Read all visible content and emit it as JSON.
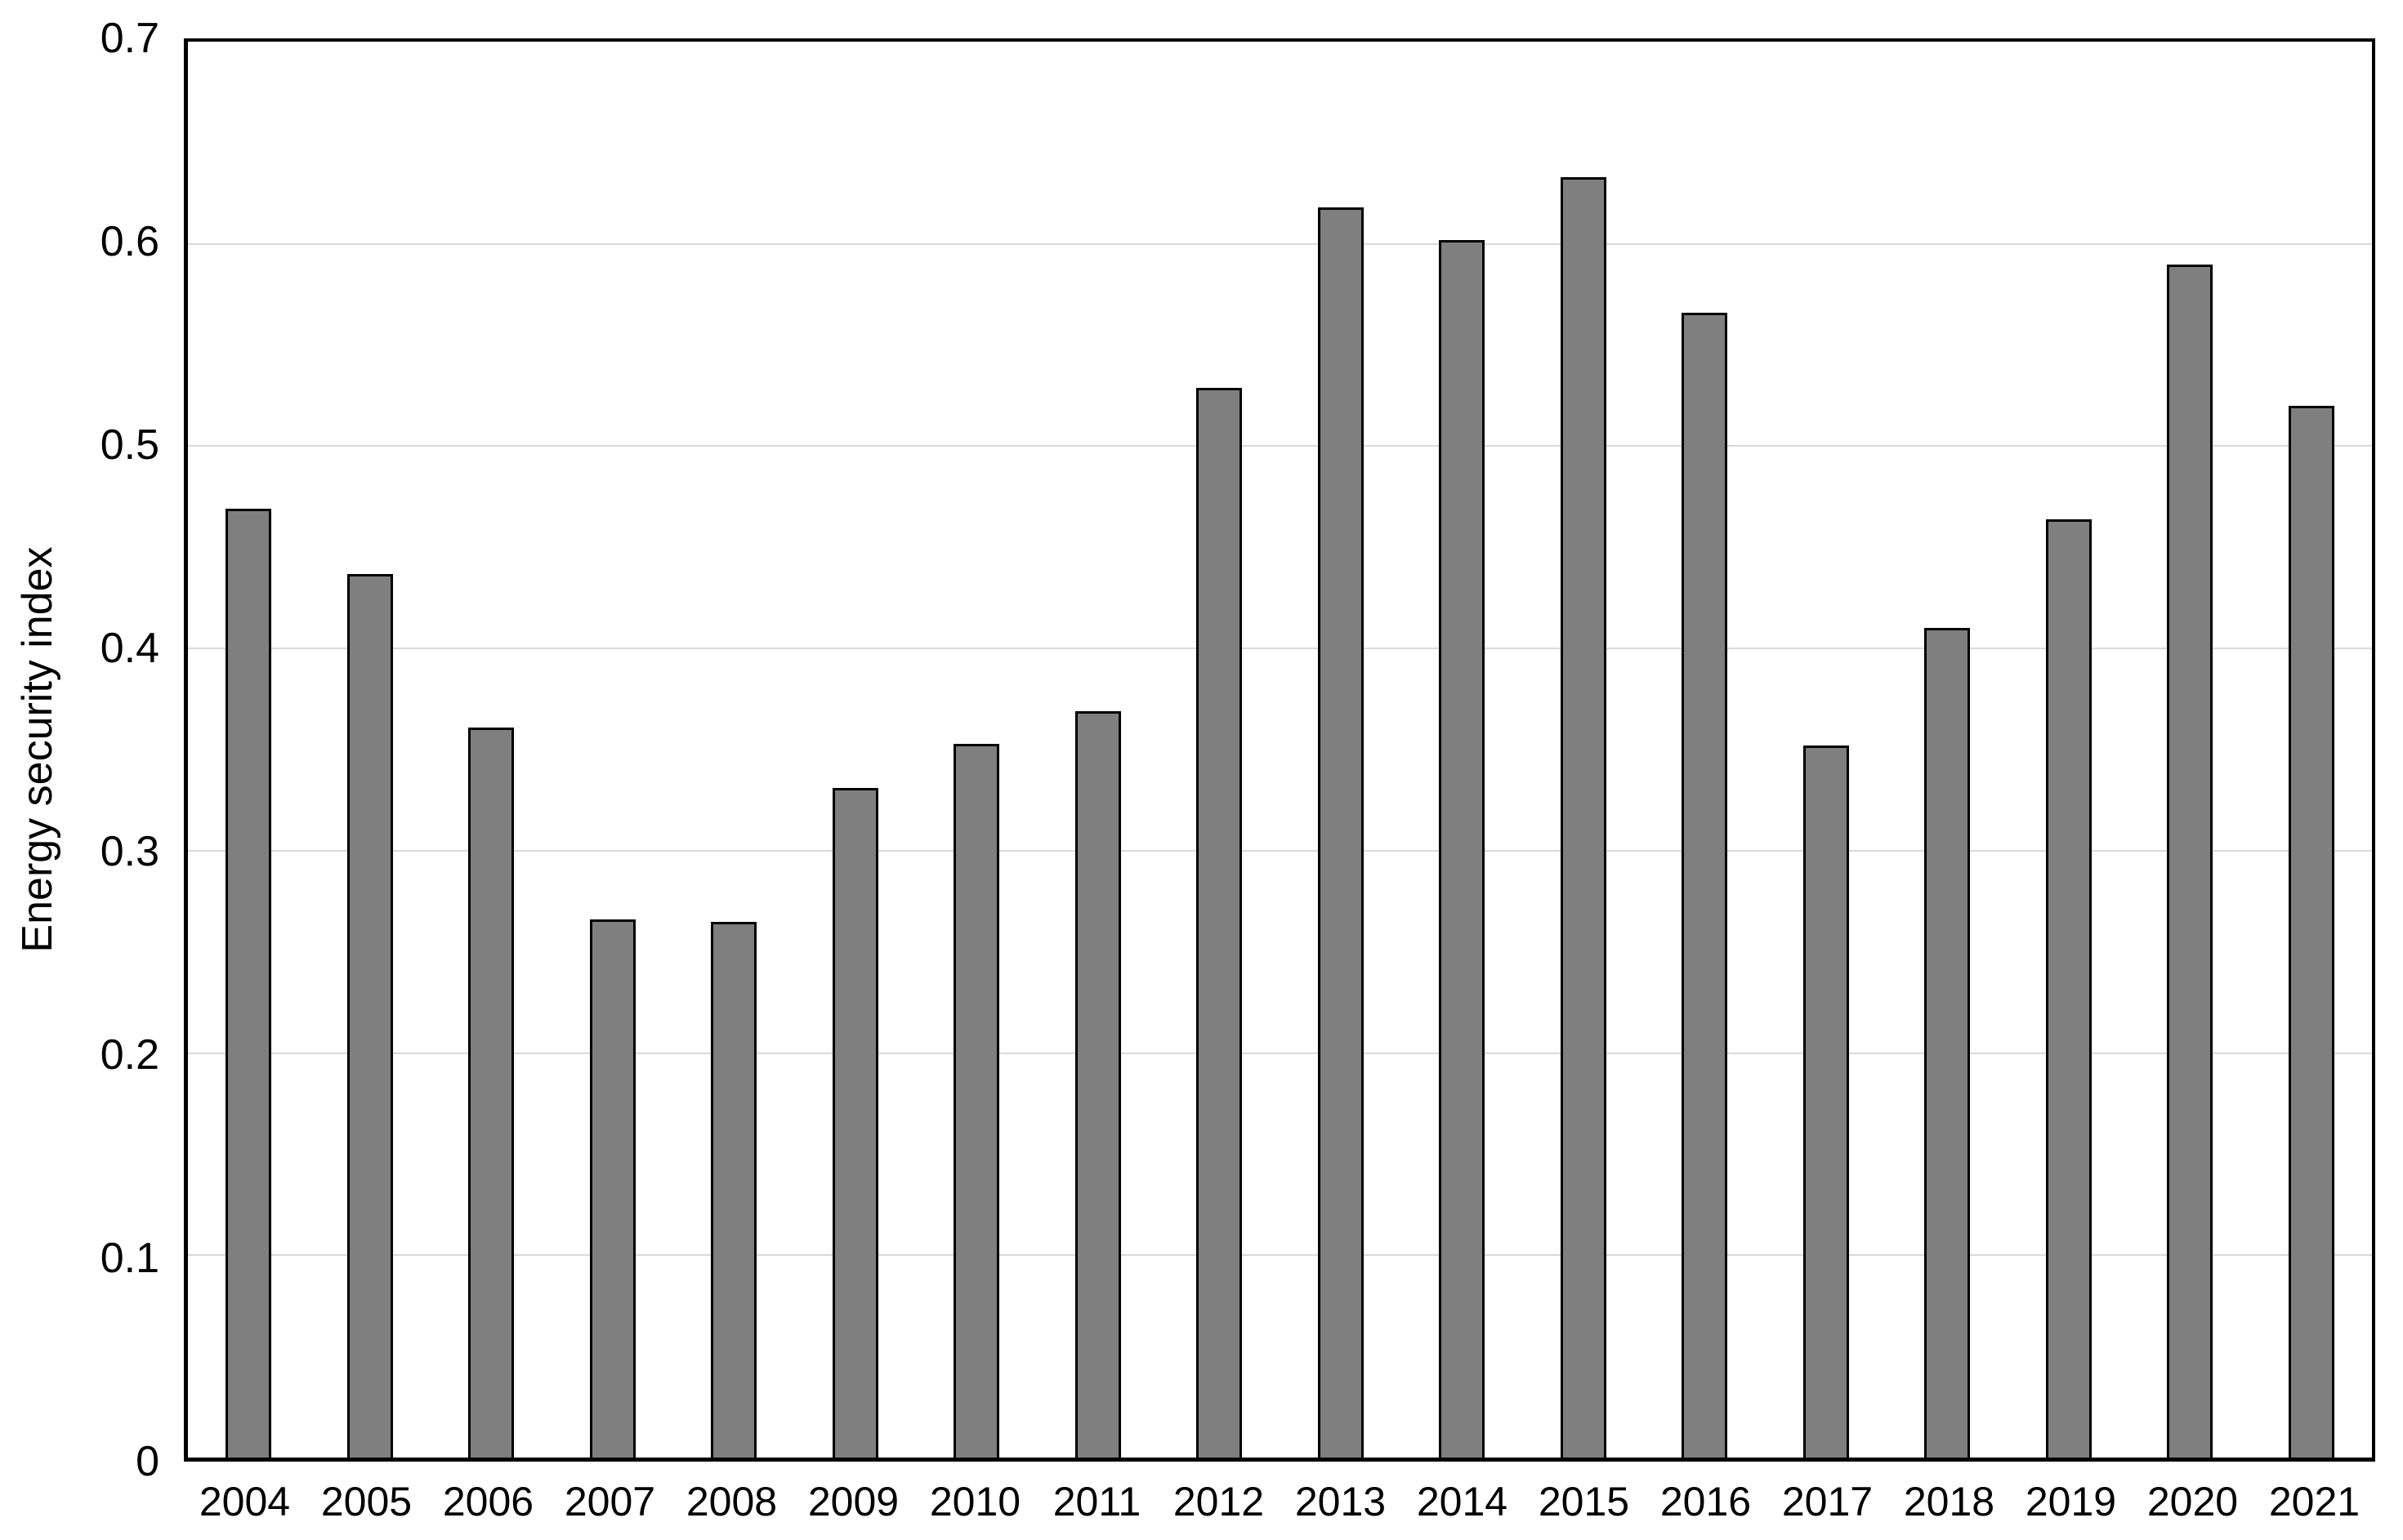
{
  "figure": {
    "background": "#FFFFFF"
  },
  "chart_data": {
    "type": "bar",
    "title": "",
    "xlabel": "",
    "ylabel": "Energy security index",
    "categories": [
      "2004",
      "2005",
      "2006",
      "2007",
      "2008",
      "2009",
      "2010",
      "2011",
      "2012",
      "2013",
      "2014",
      "2015",
      "2016",
      "2017",
      "2018",
      "2019",
      "2020",
      "2021"
    ],
    "values": [
      0.469,
      0.437,
      0.361,
      0.266,
      0.265,
      0.331,
      0.353,
      0.369,
      0.529,
      0.618,
      0.602,
      0.633,
      0.566,
      0.352,
      0.41,
      0.464,
      0.59,
      0.52
    ],
    "ylim": [
      0,
      0.7
    ],
    "ytick_values": [
      0,
      0.1,
      0.2,
      0.3,
      0.4,
      0.5,
      0.6,
      0.7
    ],
    "ytick_labels": [
      "0",
      "0.1",
      "0.2",
      "0.3",
      "0.4",
      "0.5",
      "0.6",
      "0.7"
    ],
    "gridline_values": [
      0.1,
      0.2,
      0.3,
      0.4,
      0.5,
      0.6
    ],
    "grid": "horizontal",
    "legend": "none",
    "colors": {
      "bar_fill": "#7F7F7F",
      "bar_border": "#000000",
      "gridline": "#D9D9D9",
      "axis": "#000000",
      "text": "#000000"
    }
  }
}
